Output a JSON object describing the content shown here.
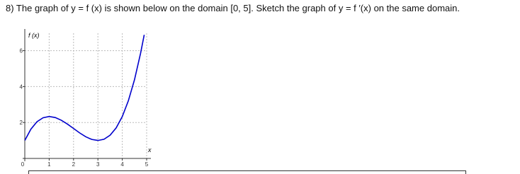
{
  "question": "8) The graph of y = f (x) is shown below on the domain [0, 5]. Sketch the graph of y = f ′(x) on the same domain.",
  "chart_data": {
    "type": "line",
    "y_label": "f (x)",
    "x_label": "x",
    "x": [
      0,
      0.25,
      0.5,
      0.75,
      1,
      1.25,
      1.5,
      1.75,
      2,
      2.25,
      2.5,
      2.75,
      3,
      3.25,
      3.5,
      3.75,
      4,
      4.25,
      4.5,
      4.75,
      4.9
    ],
    "series": [
      {
        "color": "#0000cc",
        "values": [
          1,
          1.63,
          2.042,
          2.266,
          2.333,
          2.276,
          2.125,
          1.911,
          1.667,
          1.422,
          1.208,
          1.057,
          1,
          1.068,
          1.292,
          1.703,
          2.333,
          3.214,
          4.375,
          5.849,
          6.88
        ]
      }
    ],
    "xlim": [
      0,
      5
    ],
    "ylim": [
      0,
      7
    ],
    "xticks": [
      0,
      1,
      2,
      3,
      4,
      5
    ],
    "yticks": [
      0,
      2,
      4,
      6
    ],
    "grid": true
  }
}
